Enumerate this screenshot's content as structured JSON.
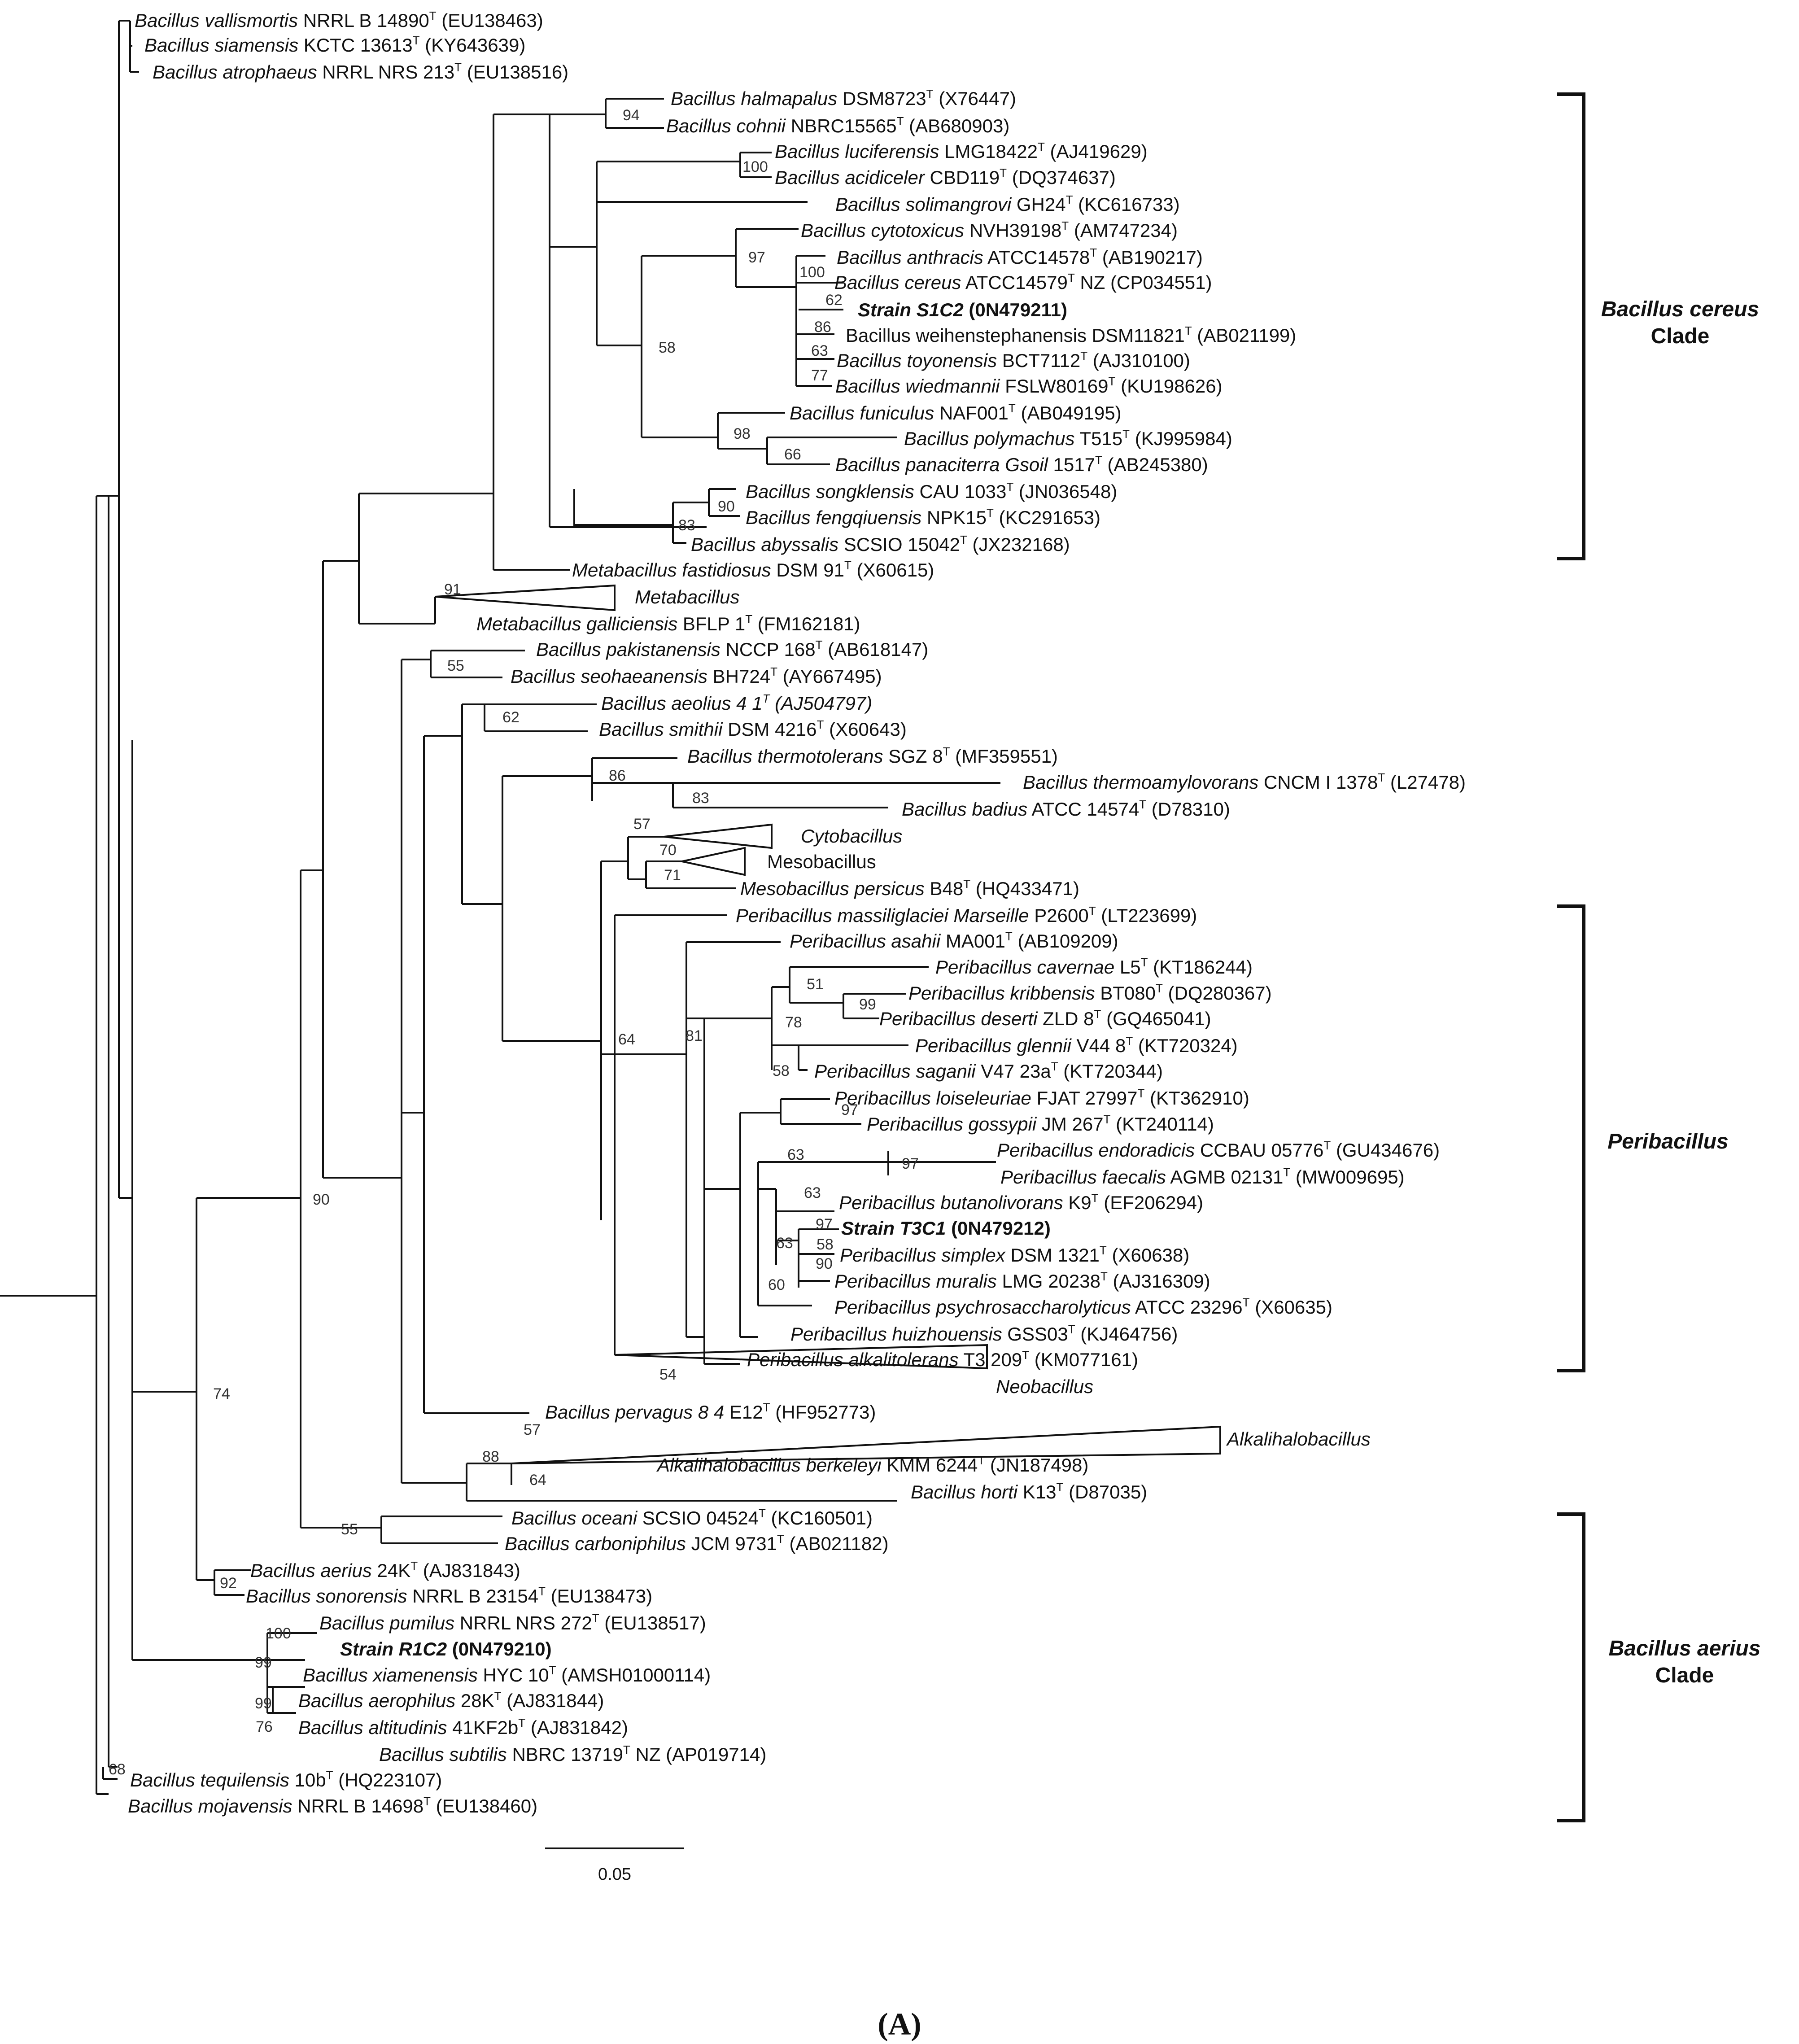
{
  "figure_label": "(A)",
  "scale_bar": "0.05",
  "clades": [
    {
      "id": "c1",
      "line1": "Bacillus cereus",
      "line2": "Clade"
    },
    {
      "id": "c2",
      "line1": "Peribacillus",
      "line2": ""
    },
    {
      "id": "c3",
      "line1": "Bacillus aerius",
      "line2": "Clade"
    }
  ],
  "bootstraps": {
    "n94": "94",
    "n100a": "100",
    "n97a": "97",
    "n100b": "100",
    "n62": "62",
    "n86": "86",
    "n63a": "63",
    "n77": "77",
    "n58a": "58",
    "n98": "98",
    "n66": "66",
    "n90a": "90",
    "n83a": "83",
    "n91": "91",
    "n55a": "55",
    "n62b": "62",
    "n86b": "86",
    "n83b": "83",
    "n57a": "57",
    "n70": "70",
    "n71": "71",
    "n51": "51",
    "n99a": "99",
    "n78": "78",
    "n58b": "58",
    "n81": "81",
    "n64a": "64",
    "n97b": "97",
    "n63b": "63",
    "n97c": "97",
    "n63c": "63",
    "n97d": "97",
    "n63d": "63",
    "n58c": "58",
    "n90b": "90",
    "n60": "60",
    "n54": "54",
    "n90c": "90",
    "n57b": "57",
    "n88": "88",
    "n64b": "64",
    "n55b": "55",
    "n74": "74",
    "n92": "92",
    "n100c": "100",
    "n99b": "99",
    "n99c": "99",
    "n76": "76",
    "n68": "68"
  },
  "taxa": [
    {
      "id": "t1",
      "genus": "Bacillus",
      "species": " vallismortis",
      "strain": " NRRL B 14890",
      "type": "T",
      "acc": " (EU138463)"
    },
    {
      "id": "t2",
      "genus": "Bacillus",
      "species": " siamensis",
      "strain": " KCTC  13613",
      "type": "T",
      "acc": " (KY643639)"
    },
    {
      "id": "t3",
      "genus": "Bacillus",
      "species": " atrophaeus",
      "strain": " NRRL  NRS  213",
      "type": "T",
      "acc": " (EU138516)"
    },
    {
      "id": "t4",
      "genus": "Bacillus",
      "species": " halmapalus",
      "strain": " DSM8723",
      "type": "T",
      "acc": " (X76447)"
    },
    {
      "id": "t5",
      "genus": "Bacillus",
      "species": " cohnii",
      "strain": " NBRC15565",
      "type": "T",
      "acc": " (AB680903)"
    },
    {
      "id": "t6",
      "genus": "Bacillus",
      "species": " luciferensis",
      "strain": " LMG18422",
      "type": "T",
      "acc": " (AJ419629)"
    },
    {
      "id": "t7",
      "genus": "Bacillus",
      "species": " acidiceler",
      "strain": " CBD119",
      "type": "T",
      "acc": " (DQ374637)"
    },
    {
      "id": "t8",
      "genus": "Bacillus",
      "species": " solimangrovi",
      "strain": " GH24",
      "type": "T",
      "acc": " (KC616733)"
    },
    {
      "id": "t9",
      "genus": "Bacillus",
      "species": " cytotoxicus",
      "strain": " NVH39198",
      "type": "T",
      "acc": " (AM747234)"
    },
    {
      "id": "t10",
      "genus": "Bacillus",
      "species": " anthracis",
      "strain": " ATCC14578",
      "type": "T",
      "acc": " (AB190217)"
    },
    {
      "id": "t11",
      "genus": "Bacillus",
      "species": " cereus",
      "strain": " ATCC14579",
      "type": "T",
      "acc": " NZ (CP034551)"
    },
    {
      "id": "t12",
      "genus": "Strain S1C2",
      "species": "",
      "strain": " (0N479211)",
      "type": "",
      "acc": ""
    },
    {
      "id": "t13",
      "genus": "Bacillus weihenstephanensis",
      "species": "",
      "strain": " DSM11821",
      "type": "T",
      "acc": " (AB021199)"
    },
    {
      "id": "t14",
      "genus": "Bacillus",
      "species": " toyonensis",
      "strain": " BCT7112",
      "type": "T",
      "acc": " (AJ310100)"
    },
    {
      "id": "t15",
      "genus": "Bacillus",
      "species": " wiedmannii",
      "strain": " FSLW80169",
      "type": "T",
      "acc": " (KU198626)"
    },
    {
      "id": "t16",
      "genus": "Bacillus",
      "species": " funiculus",
      "strain": " NAF001",
      "type": "T",
      "acc": " (AB049195)"
    },
    {
      "id": "t17",
      "genus": "Bacillus",
      "species": " polymachus",
      "strain": " T515",
      "type": "T",
      "acc": " (KJ995984)"
    },
    {
      "id": "t18",
      "genus": "Bacillus",
      "species": " panaciterra Gsoil",
      "strain": " 1517",
      "type": "T",
      "acc": " (AB245380)"
    },
    {
      "id": "t19",
      "genus": "Bacillus",
      "species": " songklensis",
      "strain": " CAU 1033",
      "type": "T",
      "acc": " (JN036548)"
    },
    {
      "id": "t20",
      "genus": "Bacillus",
      "species": " fengqiuensis",
      "strain": " NPK15",
      "type": "T",
      "acc": " (KC291653)"
    },
    {
      "id": "t21",
      "genus": "Bacillus",
      "species": " abyssalis",
      "strain": " SCSIO 15042",
      "type": "T",
      "acc": " (JX232168)"
    },
    {
      "id": "t22",
      "genus": "Metabacillus",
      "species": " fastidiosus",
      "strain": " DSM 91",
      "type": "T",
      "acc": " (X60615)"
    },
    {
      "id": "t23",
      "genus": "Metabacillus",
      "species": "",
      "strain": "",
      "type": "",
      "acc": ""
    },
    {
      "id": "t24",
      "genus": "Metabacillus",
      "species": " galliciensis",
      "strain": " BFLP 1",
      "type": "T",
      "acc": " (FM162181)"
    },
    {
      "id": "t25",
      "genus": "Bacillus",
      "species": " pakistanensis",
      "strain": " NCCP 168",
      "type": "T",
      "acc": " (AB618147)"
    },
    {
      "id": "t26",
      "genus": "Bacillus",
      "species": " seohaeanensis",
      "strain": " BH724",
      "type": "T",
      "acc": " (AY667495)"
    },
    {
      "id": "t27",
      "genus": "Bacillus",
      "species": " aeolius 4 1",
      "strain": "",
      "type": "T",
      "acc": " (AJ504797)"
    },
    {
      "id": "t28",
      "genus": "Bacillus",
      "species": " smithii",
      "strain": " DSM 4216",
      "type": "T",
      "acc": " (X60643)"
    },
    {
      "id": "t29",
      "genus": "Bacillus",
      "species": " thermotolerans",
      "strain": " SGZ 8",
      "type": "T",
      "acc": " (MF359551)"
    },
    {
      "id": "t30",
      "genus": "Bacillus",
      "species": " thermoamylovorans",
      "strain": " CNCM I 1378",
      "type": "T",
      "acc": " (L27478)"
    },
    {
      "id": "t31",
      "genus": "Bacillus",
      "species": " badius",
      "strain": " ATCC 14574",
      "type": "T",
      "acc": " (D78310)"
    },
    {
      "id": "t32",
      "genus": "Cytobacillus",
      "species": "",
      "strain": "",
      "type": "",
      "acc": ""
    },
    {
      "id": "t33",
      "genus": "Mesobacillus",
      "species": "",
      "strain": "",
      "type": "",
      "acc": ""
    },
    {
      "id": "t34",
      "genus": "Mesobacillus",
      "species": " persicus",
      "strain": " B48",
      "type": "T",
      "acc": " (HQ433471)"
    },
    {
      "id": "t35",
      "genus": "Peribacillus",
      "species": " massiliglaciei Marseille",
      "strain": " P2600",
      "type": "T",
      "acc": " (LT223699)"
    },
    {
      "id": "t36",
      "genus": "Peribacillus",
      "species": " asahii",
      "strain": " MA001",
      "type": "T",
      "acc": " (AB109209)"
    },
    {
      "id": "t37",
      "genus": "Peribacillus",
      "species": " cavernae",
      "strain": " L5",
      "type": "T",
      "acc": " (KT186244)"
    },
    {
      "id": "t38",
      "genus": "Peribacillus",
      "species": " kribbensis",
      "strain": " BT080",
      "type": "T",
      "acc": " (DQ280367)"
    },
    {
      "id": "t39",
      "genus": "Peribacillus",
      "species": " deserti",
      "strain": " ZLD 8",
      "type": "T",
      "acc": " (GQ465041)"
    },
    {
      "id": "t40",
      "genus": "Peribacillus",
      "species": " glennii",
      "strain": " V44 8",
      "type": "T",
      "acc": " (KT720324)"
    },
    {
      "id": "t41",
      "genus": "Peribacillus",
      "species": " saganii",
      "strain": " V47 23a",
      "type": "T",
      "acc": " (KT720344)"
    },
    {
      "id": "t42",
      "genus": "Peribacillus",
      "species": " loiseleuriae",
      "strain": " FJAT 27997",
      "type": "T",
      "acc": " (KT362910)"
    },
    {
      "id": "t43",
      "genus": "Peribacillus",
      "species": " gossypii",
      "strain": " JM 267",
      "type": "T",
      "acc": " (KT240114)"
    },
    {
      "id": "t44",
      "genus": "Peribacillus",
      "species": " endoradicis",
      "strain": " CCBAU 05776",
      "type": "T",
      "acc": " (GU434676)"
    },
    {
      "id": "t45",
      "genus": "Peribacillus",
      "species": " faecalis",
      "strain": " AGMB 02131",
      "type": "T",
      "acc": " (MW009695)"
    },
    {
      "id": "t46",
      "genus": "Peribacillus",
      "species": " butanolivorans",
      "strain": " K9",
      "type": "T",
      "acc": " (EF206294)"
    },
    {
      "id": "t47",
      "genus": "Strain T3C1",
      "species": "",
      "strain": " (0N479212)",
      "type": "",
      "acc": ""
    },
    {
      "id": "t48",
      "genus": "Peribacillus",
      "species": " simplex",
      "strain": " DSM 1321",
      "type": "T",
      "acc": " (X60638)"
    },
    {
      "id": "t49",
      "genus": "Peribacillus",
      "species": " muralis",
      "strain": " LMG 20238",
      "type": "T",
      "acc": " (AJ316309)"
    },
    {
      "id": "t50",
      "genus": "Peribacillus",
      "species": " psychrosaccharolyticus",
      "strain": " ATCC 23296",
      "type": "T",
      "acc": " (X60635)"
    },
    {
      "id": "t51",
      "genus": "Peribacillus",
      "species": " huizhouensis",
      "strain": " GSS03",
      "type": "T",
      "acc": " (KJ464756)"
    },
    {
      "id": "t52",
      "genus": "Peribacillus",
      "species": " alkalitolerans",
      "strain": " T3 209",
      "type": "T",
      "acc": " (KM077161)"
    },
    {
      "id": "t53",
      "genus": "Neobacillus",
      "species": "",
      "strain": "",
      "type": "",
      "acc": ""
    },
    {
      "id": "t54",
      "genus": "Bacillus",
      "species": " pervagus 8 4",
      "strain": " E12",
      "type": "T",
      "acc": " (HF952773)"
    },
    {
      "id": "t55",
      "genus": "Alkalihalobacillus",
      "species": "",
      "strain": "",
      "type": "",
      "acc": ""
    },
    {
      "id": "t56",
      "genus": "Alkalihalobacillus",
      "species": " berkeleyi",
      "strain": " KMM 6244",
      "type": "T",
      "acc": " (JN187498)"
    },
    {
      "id": "t57",
      "genus": "Bacillus",
      "species": " horti",
      "strain": " K13",
      "type": "T",
      "acc": " (D87035)"
    },
    {
      "id": "t58",
      "genus": "Bacillus",
      "species": " oceani",
      "strain": " SCSIO 04524",
      "type": "T",
      "acc": " (KC160501)"
    },
    {
      "id": "t59",
      "genus": "Bacillus",
      "species": " carboniphilus",
      "strain": " JCM 9731",
      "type": "T",
      "acc": " (AB021182)"
    },
    {
      "id": "t60",
      "genus": "Bacillus",
      "species": " aerius",
      "strain": " 24K",
      "type": "T",
      "acc": " (AJ831843)"
    },
    {
      "id": "t61",
      "genus": "Bacillus",
      "species": " sonorensis",
      "strain": " NRRL B 23154",
      "type": "T",
      "acc": " (EU138473)"
    },
    {
      "id": "t62",
      "genus": "Bacillus",
      "species": " pumilus",
      "strain": " NRRL NRS 272",
      "type": "T",
      "acc": " (EU138517)"
    },
    {
      "id": "t63",
      "genus": "Strain R1C2",
      "species": "",
      "strain": " (0N479210)",
      "type": "",
      "acc": ""
    },
    {
      "id": "t64",
      "genus": "Bacillus",
      "species": " xiamenensis",
      "strain": " HYC 10",
      "type": "T",
      "acc": " (AMSH01000114)"
    },
    {
      "id": "t65",
      "genus": "Bacillus",
      "species": " aerophilus",
      "strain": " 28K",
      "type": "T",
      "acc": " (AJ831844)"
    },
    {
      "id": "t66",
      "genus": "Bacillus",
      "species": " altitudinis",
      "strain": " 41KF2b",
      "type": "T",
      "acc": " (AJ831842)"
    },
    {
      "id": "t67",
      "genus": "Bacillus",
      "species": " subtilis",
      "strain": " NBRC 13719",
      "type": "T",
      "acc": " NZ (AP019714)"
    },
    {
      "id": "t68",
      "genus": "Bacillus",
      "species": " tequilensis",
      "strain": " 10b",
      "type": "T",
      "acc": " (HQ223107)"
    },
    {
      "id": "t69",
      "genus": "Bacillus",
      "species": " mojavensis",
      "strain": " NRRL B 14698",
      "type": "T",
      "acc": " (EU138460)"
    }
  ]
}
